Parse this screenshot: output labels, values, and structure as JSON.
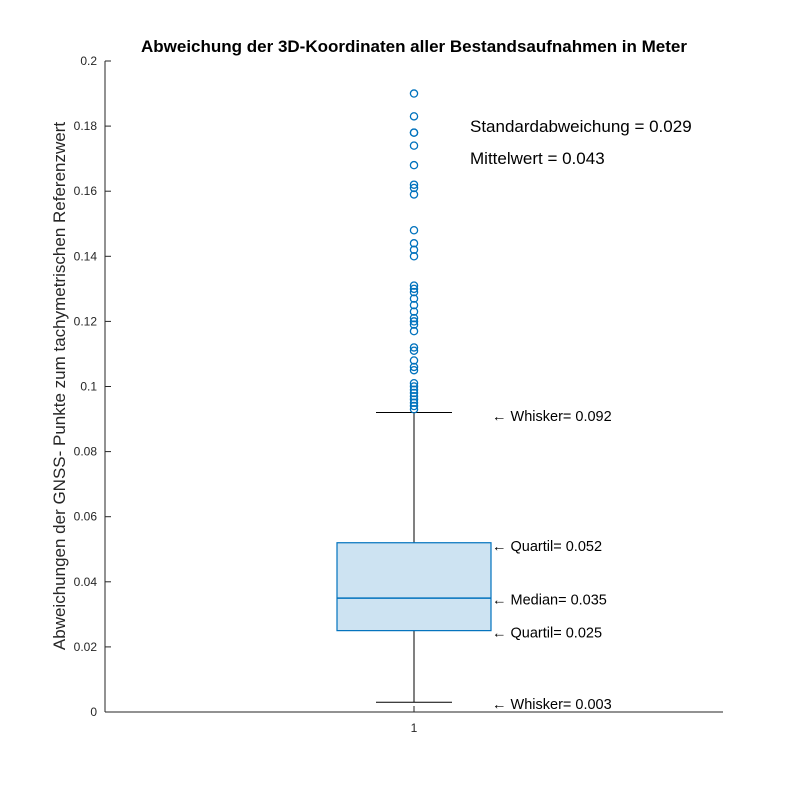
{
  "chart_data": {
    "type": "box",
    "title": "Abweichung der 3D-Koordinaten aller Bestandsaufnahmen in Meter",
    "ylabel": "Abweichungen der GNSS- Punkte zum tachymetrischen Referenzwert",
    "xlabel": "",
    "ylim": [
      0,
      0.2
    ],
    "yticks": [
      0,
      0.02,
      0.04,
      0.06,
      0.08,
      0.1,
      0.12,
      0.14,
      0.16,
      0.18,
      0.2
    ],
    "ytick_labels": [
      "0",
      "0.02",
      "0.04",
      "0.06",
      "0.08",
      "0.1",
      "0.12",
      "0.14",
      "0.16",
      "0.18",
      "0.2"
    ],
    "categories": [
      "1"
    ],
    "box": {
      "whisker_low": 0.003,
      "q1": 0.025,
      "median": 0.035,
      "q3": 0.052,
      "whisker_high": 0.092
    },
    "outliers": [
      0.093,
      0.094,
      0.095,
      0.096,
      0.097,
      0.098,
      0.099,
      0.1,
      0.101,
      0.105,
      0.106,
      0.108,
      0.111,
      0.112,
      0.117,
      0.119,
      0.12,
      0.121,
      0.123,
      0.125,
      0.127,
      0.129,
      0.13,
      0.131,
      0.14,
      0.142,
      0.144,
      0.148,
      0.159,
      0.161,
      0.162,
      0.168,
      0.174,
      0.178,
      0.178,
      0.183,
      0.19
    ],
    "annotations": [
      {
        "text": "Whisker= 0.092",
        "y": 0.091
      },
      {
        "text": "Quartil= 0.052",
        "y": 0.051
      },
      {
        "text": "Median= 0.035",
        "y": 0.0345
      },
      {
        "text": "Quartil= 0.025",
        "y": 0.0245
      },
      {
        "text": "Whisker= 0.003",
        "y": 0.0025
      }
    ],
    "annotation_arrow": "←",
    "stats": {
      "std_label": "Standardabweichung = 0.029",
      "mean_label": "Mittelwert = 0.043"
    },
    "colors": {
      "box_edge": "#0072BD",
      "box_fill": "#CDE3F2",
      "outlier": "#0072BD",
      "whisker": "#000000",
      "axis": "#262626"
    },
    "grid": false
  }
}
